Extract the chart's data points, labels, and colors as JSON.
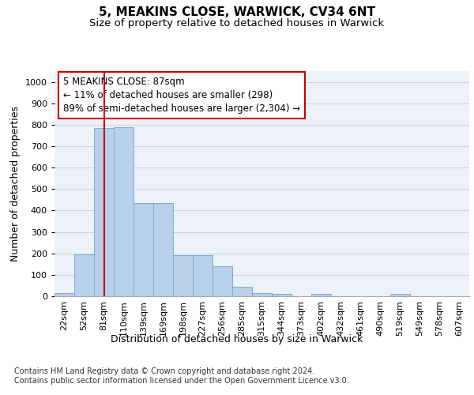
{
  "title1": "5, MEAKINS CLOSE, WARWICK, CV34 6NT",
  "title2": "Size of property relative to detached houses in Warwick",
  "xlabel": "Distribution of detached houses by size in Warwick",
  "ylabel": "Number of detached properties",
  "categories": [
    "22sqm",
    "52sqm",
    "81sqm",
    "110sqm",
    "139sqm",
    "169sqm",
    "198sqm",
    "227sqm",
    "256sqm",
    "285sqm",
    "315sqm",
    "344sqm",
    "373sqm",
    "402sqm",
    "432sqm",
    "461sqm",
    "490sqm",
    "519sqm",
    "549sqm",
    "578sqm",
    "607sqm"
  ],
  "values": [
    15,
    195,
    785,
    790,
    435,
    435,
    190,
    190,
    140,
    45,
    15,
    10,
    0,
    10,
    0,
    0,
    0,
    10,
    0,
    0,
    0
  ],
  "bar_color": "#b8d0ea",
  "bar_edge_color": "#7aadd4",
  "property_line_x": 2,
  "property_line_color": "#cc0000",
  "annotation_text": "5 MEAKINS CLOSE: 87sqm\n← 11% of detached houses are smaller (298)\n89% of semi-detached houses are larger (2,304) →",
  "annotation_box_color": "#cc0000",
  "ylim": [
    0,
    1050
  ],
  "yticks": [
    0,
    100,
    200,
    300,
    400,
    500,
    600,
    700,
    800,
    900,
    1000
  ],
  "grid_color": "#c8d4e8",
  "background_color": "#edf2f9",
  "footer_text": "Contains HM Land Registry data © Crown copyright and database right 2024.\nContains public sector information licensed under the Open Government Licence v3.0.",
  "title1_fontsize": 11,
  "title2_fontsize": 9.5,
  "xlabel_fontsize": 9,
  "ylabel_fontsize": 9,
  "annotation_fontsize": 8.5,
  "tick_fontsize": 8,
  "footer_fontsize": 7
}
